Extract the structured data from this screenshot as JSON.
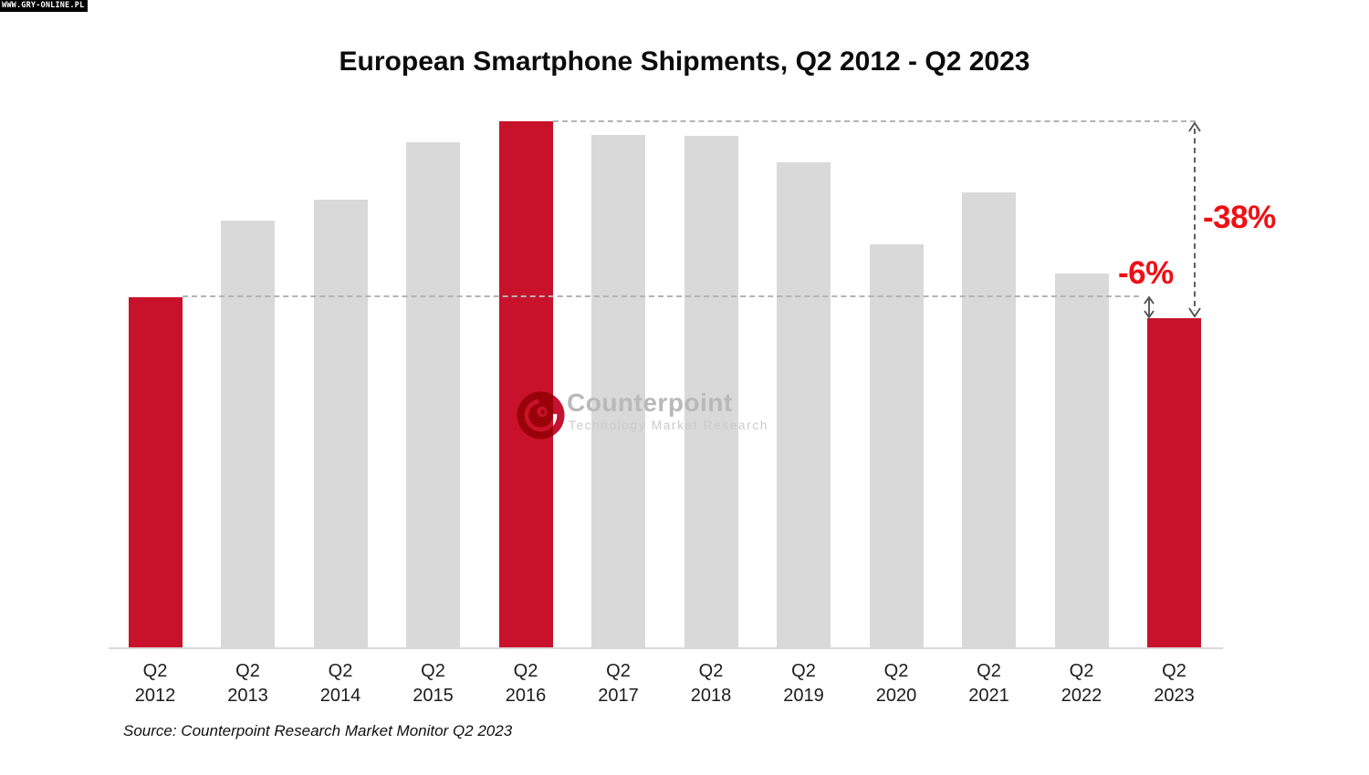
{
  "page": {
    "corner_badge": "WWW.GRY-ONLINE.PL"
  },
  "chart_data": {
    "type": "bar",
    "title": "European Smartphone Shipments, Q2 2012 - Q2 2023",
    "xlabel": "",
    "ylabel": "",
    "y_axis_visible": false,
    "gridlines": false,
    "categories": [
      "Q2 2012",
      "Q2 2013",
      "Q2 2014",
      "Q2 2015",
      "Q2 2016",
      "Q2 2017",
      "Q2 2018",
      "Q2 2019",
      "Q2 2020",
      "Q2 2021",
      "Q2 2022",
      "Q2 2023"
    ],
    "values_index_2016_100": [
      66.6,
      81.1,
      85.1,
      96.0,
      100.0,
      97.4,
      97.2,
      92.2,
      76.6,
      86.5,
      71.1,
      62.6
    ],
    "highlighted_categories": [
      "Q2 2012",
      "Q2 2016",
      "Q2 2023"
    ],
    "colors": {
      "highlight": "#c8122b",
      "default": "#d9d9d9",
      "annotation_text": "#ee1015",
      "dashed_guide": "#b3b3b3",
      "arrow": "#4d4d4d",
      "axis_line": "#d9d9d9"
    },
    "annotations": [
      {
        "label": "-38%",
        "from": "Q2 2016",
        "to": "Q2 2023"
      },
      {
        "label": "-6%",
        "from": "Q2 2012",
        "to": "Q2 2023"
      }
    ],
    "source_note": "Source: Counterpoint Research Market Monitor Q2 2023"
  },
  "watermark": {
    "brand": "Counterpoint",
    "tagline": "Technology Market Research",
    "logo_color": "#c41230"
  }
}
